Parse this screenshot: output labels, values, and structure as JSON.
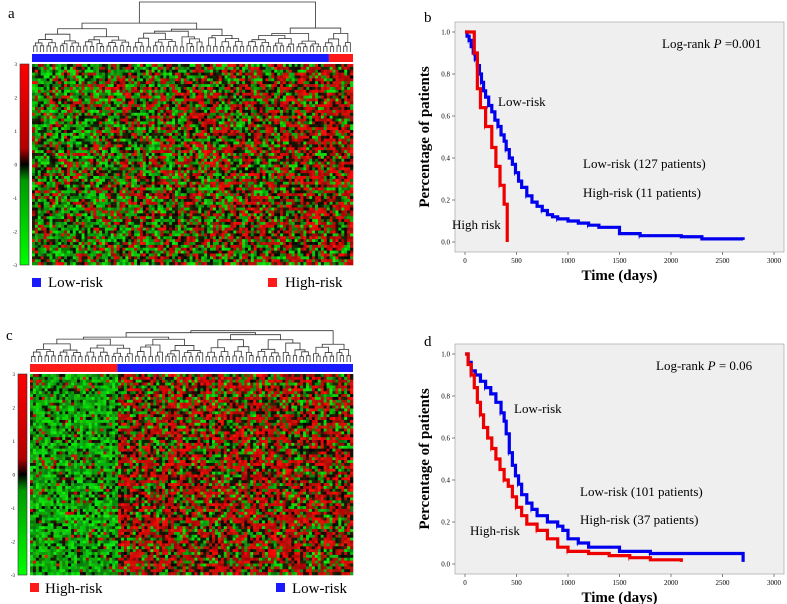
{
  "panels": {
    "a": {
      "letter": "a",
      "colorbar_ticks": [
        "3",
        "2",
        "1",
        "0",
        "-1",
        "-2",
        "-3"
      ],
      "groups": [
        {
          "name": "Low-risk",
          "color": "#1a1aff",
          "fraction": 0.925
        },
        {
          "name": "High-risk",
          "color": "#ff1a1a",
          "fraction": 0.075
        }
      ],
      "legend": [
        {
          "label": "Low-risk",
          "color": "#1a1aff"
        },
        {
          "label": "High-risk",
          "color": "#ff1a1a"
        }
      ]
    },
    "c": {
      "letter": "c",
      "colorbar_ticks": [
        "3",
        "2",
        "1",
        "0",
        "-1",
        "-2",
        "-3"
      ],
      "groups": [
        {
          "name": "High-risk",
          "color": "#ff1a1a",
          "fraction": 0.27
        },
        {
          "name": "Low-risk",
          "color": "#1a1aff",
          "fraction": 0.73
        }
      ],
      "legend": [
        {
          "label": "High-risk",
          "color": "#ff1a1a"
        },
        {
          "label": "Low-risk",
          "color": "#1a1aff"
        }
      ]
    },
    "b": {
      "letter": "b"
    },
    "d": {
      "letter": "d"
    }
  },
  "chart_data": [
    {
      "type": "heatmap",
      "panel": "a",
      "colorscale": {
        "low": "#00ff00",
        "mid": "#000000",
        "high": "#ff0000"
      },
      "value_range": [
        -3,
        3
      ],
      "column_groups": [
        "Low-risk",
        "High-risk"
      ]
    },
    {
      "type": "line",
      "panel": "b",
      "xlabel": "Time (days)",
      "ylabel": "Percentage of patients",
      "xlim": [
        0,
        3000
      ],
      "ylim": [
        0,
        1.0
      ],
      "xticks": [
        "0",
        "500",
        "1000",
        "1500",
        "2000",
        "2500",
        "3000"
      ],
      "yticks": [
        "0.0",
        "0.2",
        "0.4",
        "0.6",
        "0.8",
        "1.0"
      ],
      "annotations": [
        "Log-rank",
        "P",
        "=0.001"
      ],
      "series": [
        {
          "name": "Low-risk",
          "color": "#0000ee",
          "x": [
            0,
            20,
            40,
            60,
            80,
            100,
            120,
            140,
            160,
            180,
            200,
            230,
            260,
            290,
            320,
            350,
            380,
            400,
            430,
            460,
            490,
            520,
            550,
            600,
            650,
            700,
            750,
            800,
            850,
            900,
            1000,
            1100,
            1200,
            1300,
            1500,
            1700,
            2100,
            2300,
            2700
          ],
          "y": [
            1.0,
            0.98,
            0.96,
            0.93,
            0.9,
            0.87,
            0.84,
            0.8,
            0.76,
            0.72,
            0.69,
            0.65,
            0.62,
            0.58,
            0.55,
            0.51,
            0.48,
            0.44,
            0.4,
            0.37,
            0.33,
            0.29,
            0.26,
            0.22,
            0.19,
            0.17,
            0.15,
            0.13,
            0.12,
            0.11,
            0.1,
            0.09,
            0.08,
            0.07,
            0.04,
            0.03,
            0.025,
            0.015,
            0.01
          ]
        },
        {
          "name": "High-risk",
          "color": "#ee0000",
          "x": [
            0,
            60,
            90,
            120,
            150,
            200,
            260,
            300,
            340,
            380,
            410
          ],
          "y": [
            1.0,
            1.0,
            0.9,
            0.73,
            0.64,
            0.55,
            0.45,
            0.36,
            0.27,
            0.18,
            0.0
          ]
        }
      ],
      "labels": {
        "low_curve": "Low-risk",
        "high_curve": "High risk",
        "low_count": "Low-risk (127 patients)",
        "high_count": "High-risk (11 patients)"
      }
    },
    {
      "type": "heatmap",
      "panel": "c",
      "colorscale": {
        "low": "#00ff00",
        "mid": "#000000",
        "high": "#ff0000"
      },
      "value_range": [
        -3,
        3
      ],
      "column_groups": [
        "High-risk",
        "Low-risk"
      ]
    },
    {
      "type": "line",
      "panel": "d",
      "xlabel": "Time (days)",
      "ylabel": "Percentage of patients",
      "xlim": [
        0,
        3000
      ],
      "ylim": [
        0,
        1.0
      ],
      "xticks": [
        "0",
        "500",
        "1000",
        "1500",
        "2000",
        "2500",
        "3000"
      ],
      "yticks": [
        "0.0",
        "0.2",
        "0.4",
        "0.6",
        "0.8",
        "1.0"
      ],
      "annotations": [
        "Log-rank",
        "P",
        "= 0.06"
      ],
      "series": [
        {
          "name": "Low-risk",
          "color": "#0000ee",
          "x": [
            0,
            30,
            60,
            100,
            150,
            200,
            250,
            300,
            350,
            380,
            400,
            430,
            460,
            490,
            520,
            550,
            600,
            650,
            700,
            800,
            900,
            950,
            1000,
            1100,
            1200,
            1500,
            1800,
            2100,
            2600,
            2700
          ],
          "y": [
            1.0,
            0.96,
            0.92,
            0.9,
            0.87,
            0.84,
            0.81,
            0.77,
            0.72,
            0.68,
            0.62,
            0.53,
            0.47,
            0.42,
            0.38,
            0.33,
            0.29,
            0.26,
            0.23,
            0.2,
            0.18,
            0.16,
            0.12,
            0.1,
            0.08,
            0.06,
            0.05,
            0.05,
            0.05,
            0.01
          ]
        },
        {
          "name": "High-risk",
          "color": "#ee0000",
          "x": [
            0,
            30,
            60,
            90,
            120,
            150,
            180,
            220,
            260,
            300,
            340,
            380,
            420,
            460,
            500,
            550,
            600,
            700,
            800,
            900,
            1000,
            1200,
            1400,
            1600,
            1800,
            2100
          ],
          "y": [
            1.0,
            0.95,
            0.9,
            0.84,
            0.77,
            0.71,
            0.65,
            0.6,
            0.55,
            0.5,
            0.45,
            0.4,
            0.37,
            0.32,
            0.27,
            0.23,
            0.19,
            0.16,
            0.12,
            0.08,
            0.06,
            0.05,
            0.04,
            0.03,
            0.02,
            0.01
          ]
        }
      ],
      "labels": {
        "low_curve": "Low-risk",
        "high_curve": "High-risk",
        "low_count": "Low-risk (101 patients)",
        "high_count": "High-risk (37 patients)"
      }
    }
  ]
}
